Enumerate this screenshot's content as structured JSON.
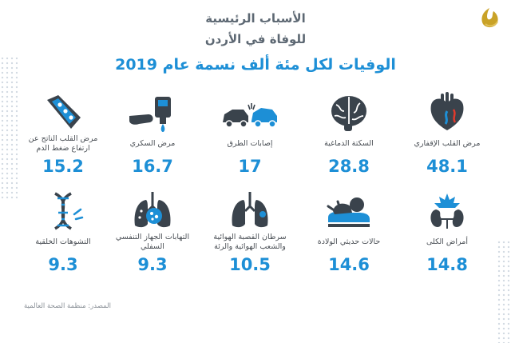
{
  "header": {
    "title_line1": "الأسباب الرئيسية",
    "title_line2": "للوفاة في الأردن",
    "subtitle": "الوفيات لكل مئة ألف نسمة عام 2019"
  },
  "source": "المصدر: منظمة الصحة العالمية",
  "colors": {
    "accent": "#1d8fd6",
    "dark_icon": "#3a434c",
    "alert": "#e23a2c"
  },
  "chart_data": {
    "type": "bar",
    "title": "الوفيات لكل مئة ألف نسمة عام 2019",
    "categories": [
      "مرض القلب الإقفاري",
      "السكتة الدماغية",
      "إصابات الطرق",
      "مرض السكري",
      "مرض القلب الناتج عن ارتفاع ضغط الدم",
      "أمراض الكلى",
      "حالات حديثي الولادة",
      "سرطان القصبة الهوائية والشعب الهوائية والرئة",
      "التهابات الجهاز التنفسي السفلي",
      "التشوهات الخلقية"
    ],
    "values": [
      48.1,
      28.8,
      17,
      16.7,
      15.2,
      14.8,
      14.6,
      10.5,
      9.3,
      9.3
    ],
    "icons": [
      "heart-icon",
      "brain-icon",
      "car-crash-icon",
      "blood-glucose-icon",
      "artery-icon",
      "kidney-icon",
      "newborn-icon",
      "lungs-icon",
      "infected-lungs-icon",
      "dna-icon"
    ]
  }
}
